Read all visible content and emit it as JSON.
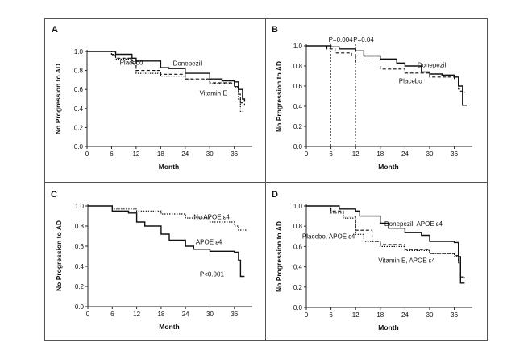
{
  "chart_data": [
    {
      "type": "line",
      "panel": "A",
      "xlabel": "Month",
      "ylabel": "No Progression to AD",
      "xlim": [
        0,
        40
      ],
      "ylim": [
        0,
        1.0
      ],
      "xticks": [
        "0",
        "6",
        "12",
        "18",
        "24",
        "30",
        "36"
      ],
      "yticks": [
        "0.0",
        "0.2",
        "0.4",
        "0.6",
        "0.8",
        "1.0"
      ],
      "series": [
        {
          "name": "Donepezil",
          "style": "solid",
          "points": [
            [
              0,
              1.0
            ],
            [
              6,
              1.0
            ],
            [
              7,
              0.97
            ],
            [
              11,
              0.93
            ],
            [
              12,
              0.9
            ],
            [
              18,
              0.83
            ],
            [
              20,
              0.82
            ],
            [
              24,
              0.77
            ],
            [
              30,
              0.71
            ],
            [
              33,
              0.69
            ],
            [
              36,
              0.68
            ],
            [
              37,
              0.6
            ],
            [
              38,
              0.5
            ],
            [
              38.5,
              0.47
            ]
          ]
        },
        {
          "name": "Placebo",
          "style": "dashed",
          "points": [
            [
              0,
              1.0
            ],
            [
              6,
              0.97
            ],
            [
              7,
              0.93
            ],
            [
              11,
              0.9
            ],
            [
              12,
              0.8
            ],
            [
              18,
              0.76
            ],
            [
              24,
              0.71
            ],
            [
              30,
              0.67
            ],
            [
              36,
              0.63
            ],
            [
              37,
              0.55
            ],
            [
              37.5,
              0.46
            ],
            [
              38.5,
              0.43
            ]
          ]
        },
        {
          "name": "Vitamin E",
          "style": "dotted",
          "points": [
            [
              0,
              1.0
            ],
            [
              6,
              0.96
            ],
            [
              7,
              0.92
            ],
            [
              11,
              0.87
            ],
            [
              12,
              0.77
            ],
            [
              18,
              0.74
            ],
            [
              24,
              0.7
            ],
            [
              30,
              0.66
            ],
            [
              36,
              0.62
            ],
            [
              37,
              0.5
            ],
            [
              37.5,
              0.37
            ],
            [
              38.5,
              0.37
            ]
          ]
        }
      ],
      "annotations": [
        {
          "text": "Placebo",
          "x": 8,
          "y": 0.86
        },
        {
          "text": "Donepezil",
          "x": 21,
          "y": 0.85
        },
        {
          "text": "Vitamin E",
          "x": 27.5,
          "y": 0.54
        }
      ],
      "pvalues": []
    },
    {
      "type": "line",
      "panel": "B",
      "xlabel": "Month",
      "ylabel": "No Progression to AD",
      "xlim": [
        0,
        40
      ],
      "ylim": [
        0,
        1.0
      ],
      "xticks": [
        "0",
        "6",
        "12",
        "18",
        "24",
        "30",
        "36"
      ],
      "yticks": [
        "0.0",
        "0.2",
        "0.4",
        "0.6",
        "0.8",
        "1.0"
      ],
      "series": [
        {
          "name": "Donepezil",
          "style": "solid",
          "points": [
            [
              0,
              1.0
            ],
            [
              6,
              0.99
            ],
            [
              8,
              0.97
            ],
            [
              12,
              0.95
            ],
            [
              14,
              0.9
            ],
            [
              18,
              0.87
            ],
            [
              22,
              0.83
            ],
            [
              24,
              0.8
            ],
            [
              28,
              0.74
            ],
            [
              30,
              0.72
            ],
            [
              33,
              0.71
            ],
            [
              36,
              0.69
            ],
            [
              37,
              0.6
            ],
            [
              38,
              0.41
            ],
            [
              39,
              0.41
            ]
          ]
        },
        {
          "name": "Placebo",
          "style": "dashed",
          "points": [
            [
              0,
              1.0
            ],
            [
              5,
              0.97
            ],
            [
              7,
              0.93
            ],
            [
              11,
              0.9
            ],
            [
              12,
              0.82
            ],
            [
              18,
              0.77
            ],
            [
              24,
              0.73
            ],
            [
              30,
              0.69
            ],
            [
              36,
              0.66
            ],
            [
              37,
              0.57
            ],
            [
              37.5,
              0.55
            ],
            [
              38.5,
              0.54
            ]
          ]
        }
      ],
      "annotations": [
        {
          "text": "Donepezil",
          "x": 27,
          "y": 0.79
        },
        {
          "text": "Placebo",
          "x": 22.5,
          "y": 0.63
        }
      ],
      "pvalues": [
        {
          "text": "P=0.004",
          "x": 6
        },
        {
          "text": "P=0.04",
          "x": 12
        }
      ]
    },
    {
      "type": "line",
      "panel": "C",
      "xlabel": "Month",
      "ylabel": "No Progression to AD",
      "xlim": [
        0,
        40
      ],
      "ylim": [
        0,
        1.0
      ],
      "xticks": [
        "0",
        "6",
        "12",
        "18",
        "24",
        "30",
        "36"
      ],
      "yticks": [
        "0.0",
        "0.2",
        "0.4",
        "0.6",
        "0.8",
        "1.0"
      ],
      "series": [
        {
          "name": "No APOE ε4",
          "style": "dotted",
          "points": [
            [
              0,
              1.0
            ],
            [
              6,
              0.97
            ],
            [
              12,
              0.95
            ],
            [
              18,
              0.92
            ],
            [
              24,
              0.88
            ],
            [
              30,
              0.84
            ],
            [
              36,
              0.8
            ],
            [
              37,
              0.76
            ],
            [
              39,
              0.75
            ]
          ]
        },
        {
          "name": "APOE ε4",
          "style": "solid",
          "points": [
            [
              0,
              1.0
            ],
            [
              5,
              1.0
            ],
            [
              6,
              0.95
            ],
            [
              10,
              0.93
            ],
            [
              12,
              0.84
            ],
            [
              14,
              0.8
            ],
            [
              18,
              0.72
            ],
            [
              20,
              0.66
            ],
            [
              24,
              0.6
            ],
            [
              26,
              0.57
            ],
            [
              30,
              0.55
            ],
            [
              36,
              0.54
            ],
            [
              37,
              0.46
            ],
            [
              37.5,
              0.3
            ],
            [
              38.5,
              0.3
            ]
          ]
        }
      ],
      "annotations": [
        {
          "text": "No APOE ε4",
          "x": 26,
          "y": 0.87
        },
        {
          "text": "APOE ε4",
          "x": 26.5,
          "y": 0.62
        },
        {
          "text": "P<0.001",
          "x": 27.5,
          "y": 0.3
        }
      ],
      "pvalues": []
    },
    {
      "type": "line",
      "panel": "D",
      "xlabel": "Month",
      "ylabel": "No Progression to AD",
      "xlim": [
        0,
        40
      ],
      "ylim": [
        0,
        1.0
      ],
      "xticks": [
        "0",
        "6",
        "12",
        "18",
        "24",
        "30",
        "36"
      ],
      "yticks": [
        "0.0",
        "0.2",
        "0.4",
        "0.6",
        "0.8",
        "1.0"
      ],
      "series": [
        {
          "name": "Donepezil, APOE ε4",
          "style": "solid",
          "points": [
            [
              0,
              1.0
            ],
            [
              6,
              1.0
            ],
            [
              8,
              0.97
            ],
            [
              12,
              0.95
            ],
            [
              13,
              0.9
            ],
            [
              18,
              0.83
            ],
            [
              20,
              0.78
            ],
            [
              24,
              0.74
            ],
            [
              28,
              0.71
            ],
            [
              30,
              0.65
            ],
            [
              36,
              0.64
            ],
            [
              37,
              0.5
            ],
            [
              37.5,
              0.24
            ],
            [
              38.5,
              0.24
            ]
          ]
        },
        {
          "name": "Placebo, APOE ε4",
          "style": "dashed",
          "points": [
            [
              0,
              1.0
            ],
            [
              6,
              0.95
            ],
            [
              9,
              0.9
            ],
            [
              12,
              0.76
            ],
            [
              16,
              0.65
            ],
            [
              18,
              0.62
            ],
            [
              24,
              0.57
            ],
            [
              30,
              0.53
            ],
            [
              36,
              0.51
            ],
            [
              37,
              0.45
            ],
            [
              37.5,
              0.3
            ],
            [
              38.5,
              0.3
            ]
          ]
        },
        {
          "name": "Vitamin E, APOE ε4",
          "style": "dotted",
          "points": [
            [
              0,
              1.0
            ],
            [
              6,
              0.93
            ],
            [
              9,
              0.88
            ],
            [
              12,
              0.72
            ],
            [
              14,
              0.65
            ],
            [
              18,
              0.6
            ],
            [
              24,
              0.56
            ],
            [
              30,
              0.53
            ],
            [
              36,
              0.5
            ],
            [
              37,
              0.44
            ],
            [
              37.5,
              0.3
            ],
            [
              38.5,
              0.29
            ]
          ]
        }
      ],
      "annotations": [
        {
          "text": "Donepezil, APOE ε4",
          "x": 19,
          "y": 0.8
        },
        {
          "text": "Placebo, APOE ε4",
          "x": -1,
          "y": 0.68
        },
        {
          "text": "Vitamin E, APOE ε4",
          "x": 17.5,
          "y": 0.44
        }
      ],
      "pvalues": []
    }
  ]
}
